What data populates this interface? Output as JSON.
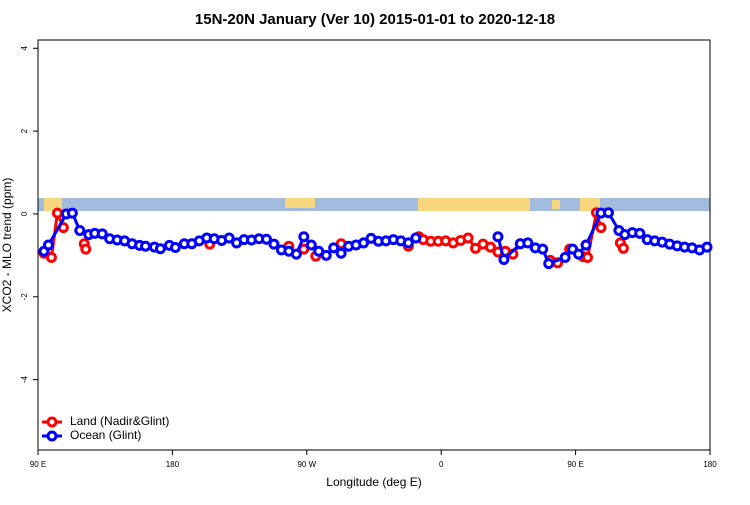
{
  "chart_data": {
    "type": "line",
    "title": "15N-20N January (Ver 10)   2015-01-01 to 2020-12-18",
    "x_label": "Longitude (deg E)",
    "y_label": "XCO2 - MLO trend (ppm)",
    "xlim": [
      90,
      540
    ],
    "xticks": [
      {
        "value": 90,
        "label": "90 E"
      },
      {
        "value": 180,
        "label": "180"
      },
      {
        "value": 270,
        "label": "90 W"
      },
      {
        "value": 360,
        "label": "0"
      },
      {
        "value": 450,
        "label": "90 E"
      },
      {
        "value": 540,
        "label": "180"
      }
    ],
    "ylim": [
      -5.7,
      4.2
    ],
    "yticks": [
      -4,
      -2,
      0,
      2,
      4
    ],
    "legend": "bottom-left",
    "series": [
      {
        "name": "Land (Nadir&Glint)",
        "color": "#ff0000",
        "x": [
          94,
          99,
          103,
          107,
          112,
          121,
          122,
          130,
          205,
          215,
          258,
          262,
          268,
          272,
          276,
          285,
          293,
          300,
          338,
          345,
          348,
          353,
          358,
          363,
          368,
          373,
          378,
          383,
          388,
          393,
          398,
          403,
          408,
          413,
          420,
          433,
          438,
          442,
          446,
          450,
          455,
          458,
          464,
          467,
          472,
          480,
          482
        ],
        "values": [
          -0.95,
          -1.05,
          0.02,
          -0.33,
          null,
          -0.72,
          -0.85,
          null,
          -0.73,
          null,
          -0.78,
          null,
          -0.85,
          null,
          -1.02,
          null,
          -0.72,
          null,
          -0.78,
          -0.55,
          -0.62,
          -0.66,
          -0.66,
          -0.65,
          -0.7,
          -0.64,
          -0.58,
          -0.83,
          -0.73,
          -0.8,
          -0.92,
          -0.9,
          -0.97,
          -0.72,
          null,
          -1.12,
          -1.18,
          null,
          -0.85,
          null,
          -1.03,
          -1.05,
          0.03,
          -0.33,
          null,
          -0.7,
          -0.83
        ]
      },
      {
        "name": "Ocean (Glint)",
        "color": "#0000ff",
        "x": [
          94,
          97,
          109,
          113,
          118,
          124,
          128,
          133,
          138,
          143,
          148,
          153,
          158,
          162,
          168,
          172,
          178,
          182,
          188,
          193,
          198,
          203,
          208,
          213,
          218,
          223,
          228,
          233,
          238,
          243,
          248,
          253,
          258,
          263,
          268,
          273,
          278,
          283,
          288,
          293,
          298,
          303,
          308,
          313,
          318,
          323,
          328,
          333,
          338,
          343,
          380,
          398,
          402,
          413,
          418,
          423,
          428,
          432,
          443,
          448,
          452,
          457,
          467,
          472,
          479,
          483,
          488,
          493,
          498,
          503,
          508,
          513,
          518,
          523,
          528,
          533,
          538
        ],
        "values": [
          -0.9,
          -0.75,
          0.0,
          0.02,
          -0.4,
          -0.5,
          -0.47,
          -0.48,
          -0.6,
          -0.63,
          -0.65,
          -0.72,
          -0.76,
          -0.78,
          -0.8,
          -0.84,
          -0.76,
          -0.81,
          -0.72,
          -0.72,
          -0.65,
          -0.58,
          -0.6,
          -0.64,
          -0.58,
          -0.7,
          -0.62,
          -0.63,
          -0.6,
          -0.61,
          -0.73,
          -0.87,
          -0.9,
          -0.97,
          -0.55,
          -0.75,
          -0.9,
          -1.0,
          -0.82,
          -0.95,
          -0.78,
          -0.75,
          -0.7,
          -0.59,
          -0.66,
          -0.65,
          -0.62,
          -0.65,
          -0.7,
          -0.58,
          null,
          -0.55,
          -1.1,
          -0.72,
          -0.7,
          -0.82,
          -0.85,
          -1.2,
          -1.05,
          -0.85,
          -0.97,
          -0.75,
          0.02,
          0.03,
          -0.4,
          -0.5,
          -0.45,
          -0.47,
          -0.62,
          -0.65,
          -0.68,
          -0.73,
          -0.77,
          -0.8,
          -0.82,
          -0.87,
          -0.8
        ]
      }
    ]
  }
}
